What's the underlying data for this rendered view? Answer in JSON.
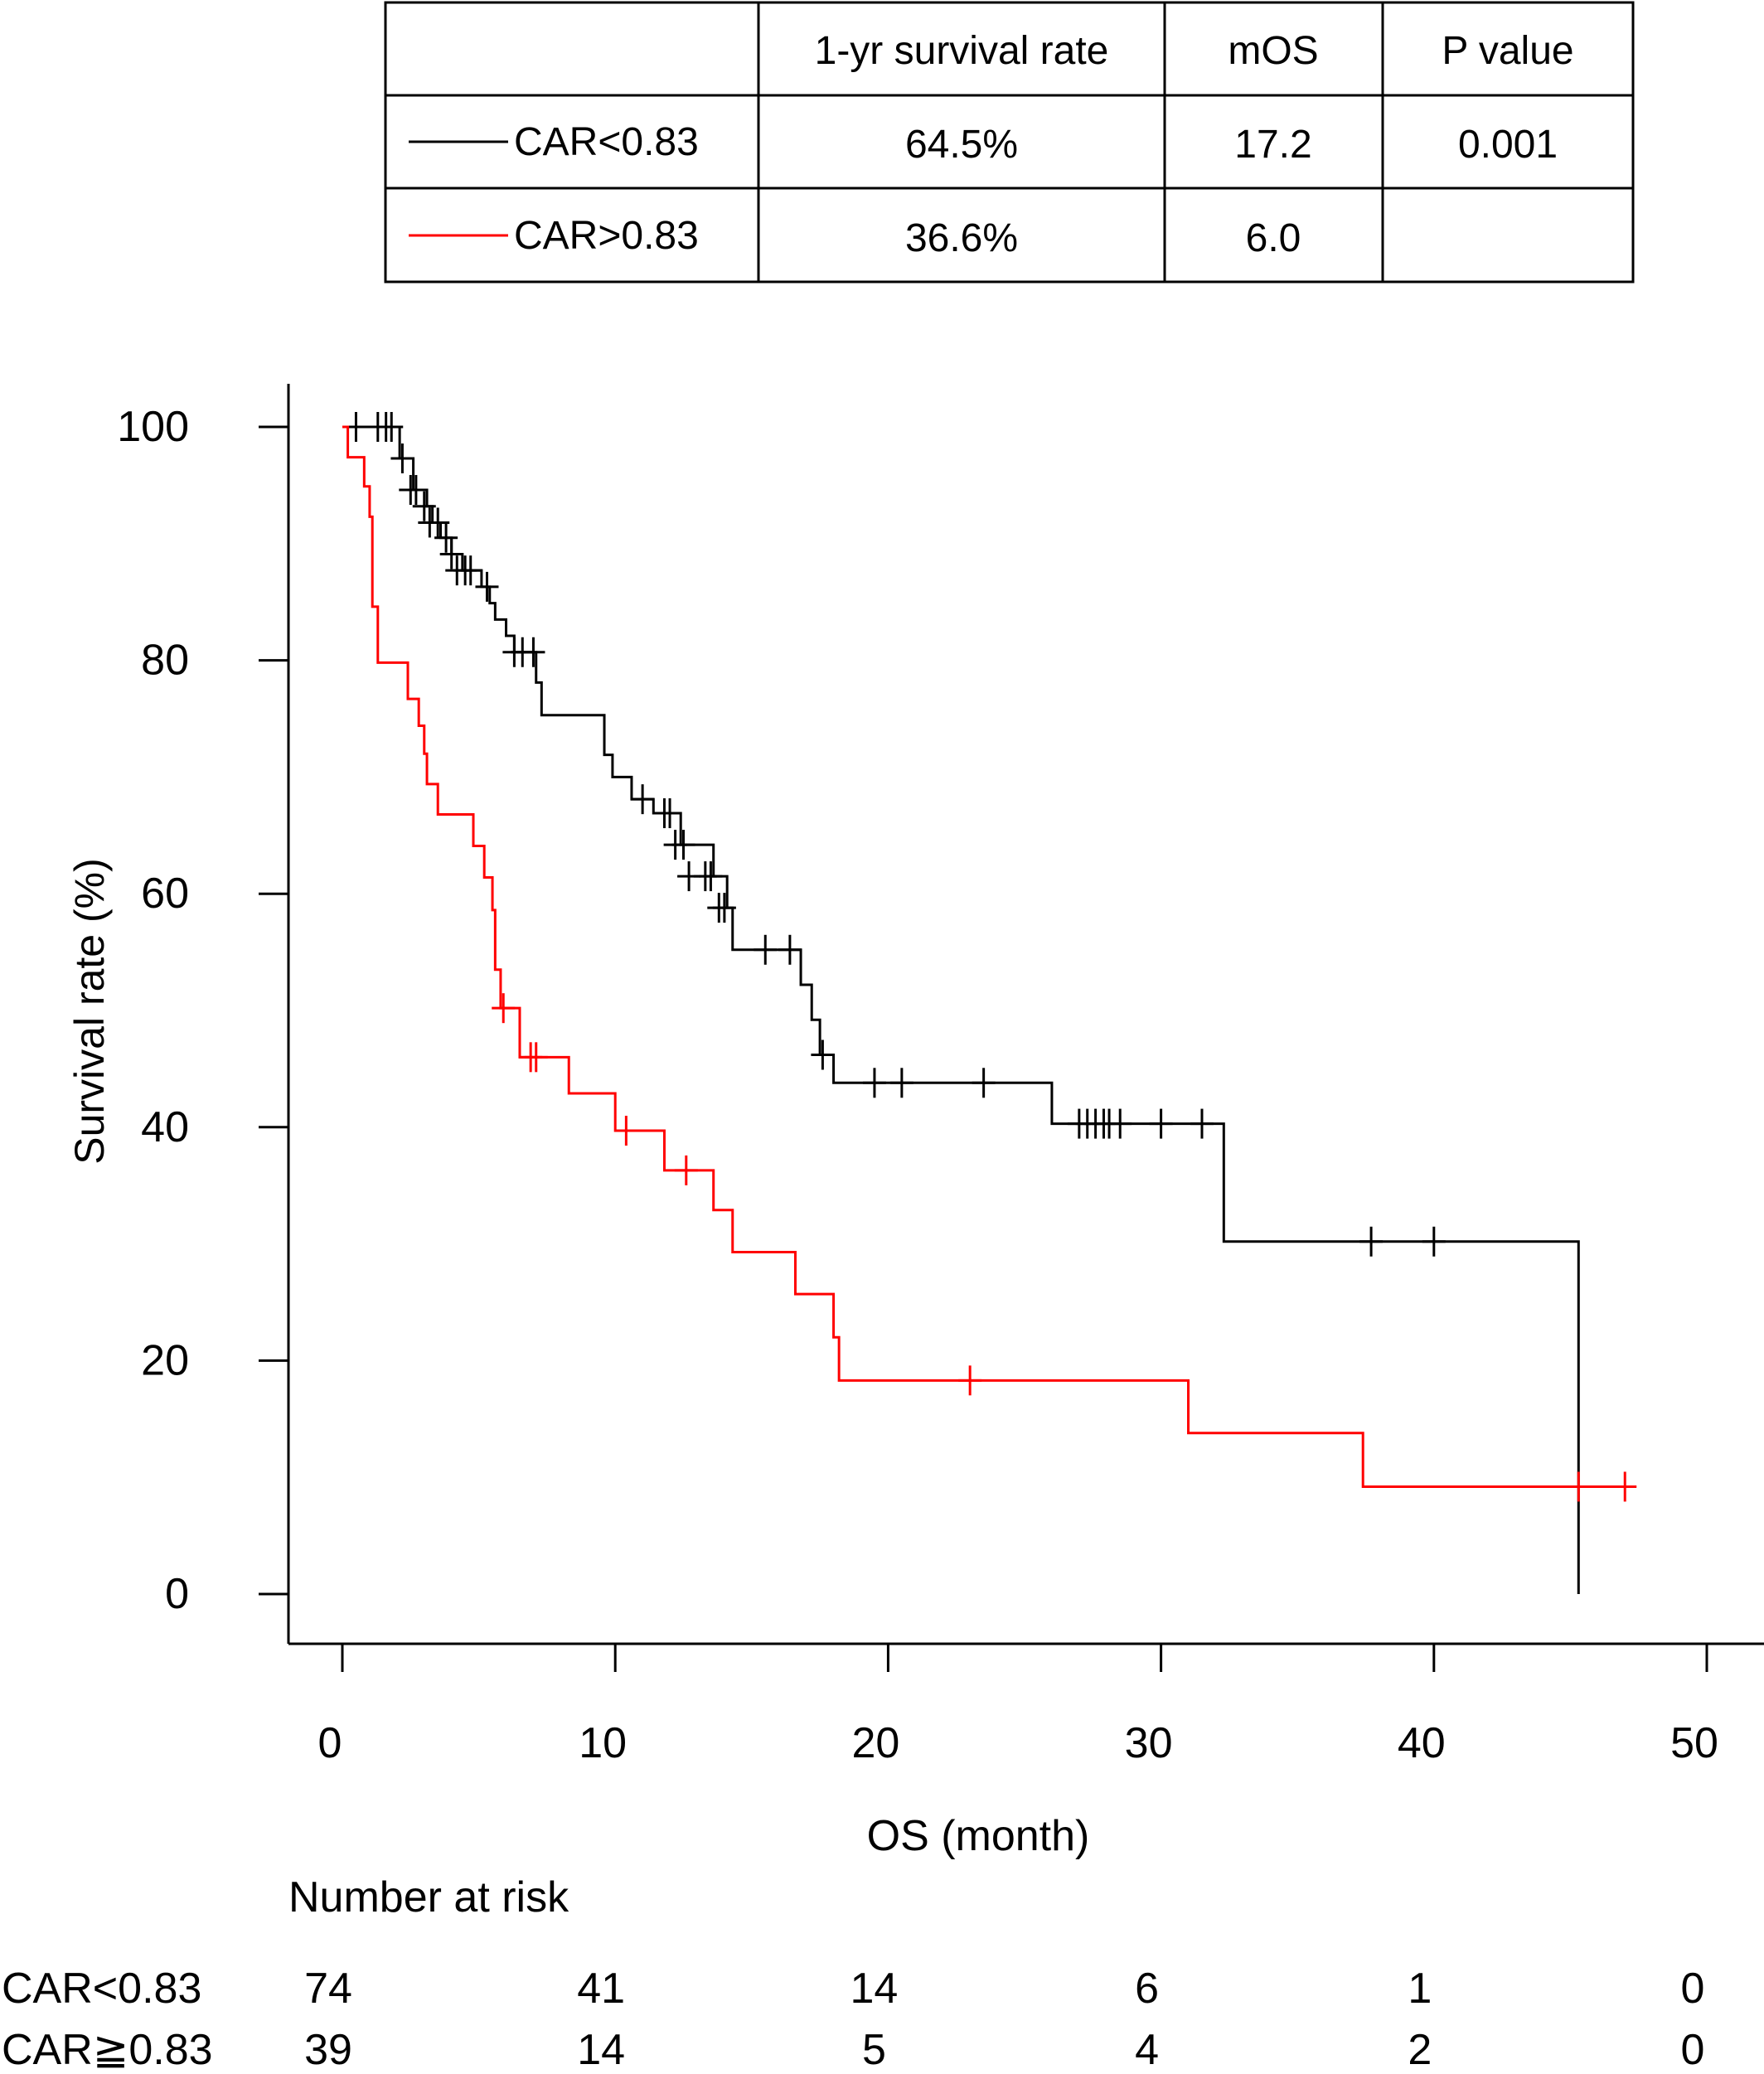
{
  "summary_table": {
    "headers": [
      "",
      "1-yr survival rate",
      "mOS",
      "P value"
    ],
    "rows": [
      {
        "label": "CAR<0.83",
        "color": "#000000",
        "one_year_survival": "64.5%",
        "mos": "17.2",
        "p_value": "0.001"
      },
      {
        "label": "CAR>0.83",
        "color": "#ff0000",
        "one_year_survival": "36.6%",
        "mos": "6.0",
        "p_value": ""
      }
    ]
  },
  "chart_data": {
    "type": "line",
    "step": true,
    "xlabel": "OS (month)",
    "ylabel": "Survival rate (%)",
    "xlim": [
      0,
      50
    ],
    "ylim": [
      0,
      100
    ],
    "xticks": [
      0,
      10,
      20,
      30,
      40,
      50
    ],
    "yticks": [
      0,
      20,
      40,
      60,
      80,
      100
    ],
    "grid": false,
    "series": [
      {
        "name": "CAR<0.83",
        "color": "#000000",
        "steps": [
          [
            0,
            100
          ],
          [
            2.1,
            97.3
          ],
          [
            2.6,
            94.6
          ],
          [
            3.1,
            93.2
          ],
          [
            3.3,
            91.8
          ],
          [
            3.6,
            90.5
          ],
          [
            4.0,
            89.1
          ],
          [
            4.4,
            87.7
          ],
          [
            5.1,
            86.3
          ],
          [
            5.4,
            84.9
          ],
          [
            5.6,
            83.5
          ],
          [
            6.0,
            82.1
          ],
          [
            6.3,
            80.7
          ],
          [
            7.1,
            78.1
          ],
          [
            7.3,
            75.3
          ],
          [
            9.6,
            71.9
          ],
          [
            9.9,
            70.0
          ],
          [
            10.6,
            68.1
          ],
          [
            11.4,
            66.9
          ],
          [
            12.4,
            64.2
          ],
          [
            13.6,
            61.5
          ],
          [
            14.1,
            58.8
          ],
          [
            14.3,
            55.2
          ],
          [
            16.8,
            52.2
          ],
          [
            17.2,
            49.2
          ],
          [
            17.5,
            46.2
          ],
          [
            18.0,
            43.8
          ],
          [
            26.0,
            40.3
          ],
          [
            32.3,
            30.2
          ],
          [
            45.3,
            0
          ]
        ],
        "end_x": 45.3,
        "censored": [
          [
            0.5,
            100
          ],
          [
            1.3,
            100
          ],
          [
            1.6,
            100
          ],
          [
            1.8,
            100
          ],
          [
            2.2,
            97.3
          ],
          [
            2.5,
            94.6
          ],
          [
            2.7,
            94.6
          ],
          [
            3.0,
            93.2
          ],
          [
            3.2,
            91.8
          ],
          [
            3.5,
            91.8
          ],
          [
            3.8,
            90.5
          ],
          [
            4.0,
            89.1
          ],
          [
            4.2,
            87.7
          ],
          [
            4.5,
            87.7
          ],
          [
            4.7,
            87.7
          ],
          [
            5.3,
            86.3
          ],
          [
            6.3,
            80.7
          ],
          [
            6.6,
            80.7
          ],
          [
            7.0,
            80.7
          ],
          [
            11.0,
            68.1
          ],
          [
            11.8,
            66.9
          ],
          [
            12.0,
            66.9
          ],
          [
            12.2,
            64.2
          ],
          [
            12.5,
            64.2
          ],
          [
            12.7,
            61.5
          ],
          [
            13.3,
            61.5
          ],
          [
            13.5,
            61.5
          ],
          [
            13.8,
            58.8
          ],
          [
            14.0,
            58.8
          ],
          [
            15.5,
            55.2
          ],
          [
            16.4,
            55.2
          ],
          [
            17.6,
            46.2
          ],
          [
            19.5,
            43.8
          ],
          [
            20.5,
            43.8
          ],
          [
            23.5,
            43.8
          ],
          [
            27.0,
            40.3
          ],
          [
            27.3,
            40.3
          ],
          [
            27.6,
            40.3
          ],
          [
            27.9,
            40.3
          ],
          [
            28.1,
            40.3
          ],
          [
            28.5,
            40.3
          ],
          [
            30.0,
            40.3
          ],
          [
            31.5,
            40.3
          ],
          [
            37.7,
            30.2
          ],
          [
            40.0,
            30.2
          ]
        ]
      },
      {
        "name": "CAR≧0.83",
        "color": "#ff0000",
        "steps": [
          [
            0,
            100
          ],
          [
            0.2,
            97.4
          ],
          [
            0.8,
            94.9
          ],
          [
            1.0,
            92.3
          ],
          [
            1.1,
            84.6
          ],
          [
            1.3,
            79.8
          ],
          [
            2.4,
            76.7
          ],
          [
            2.8,
            74.4
          ],
          [
            3.0,
            72.0
          ],
          [
            3.1,
            69.4
          ],
          [
            3.5,
            66.8
          ],
          [
            4.8,
            64.1
          ],
          [
            5.2,
            61.4
          ],
          [
            5.5,
            58.6
          ],
          [
            5.6,
            53.5
          ],
          [
            5.8,
            50.2
          ],
          [
            6.5,
            46.0
          ],
          [
            8.3,
            42.9
          ],
          [
            10.0,
            39.7
          ],
          [
            11.8,
            36.3
          ],
          [
            13.6,
            32.9
          ],
          [
            14.3,
            29.3
          ],
          [
            16.6,
            25.7
          ],
          [
            18.0,
            22.0
          ],
          [
            18.2,
            18.3
          ],
          [
            31.0,
            13.8
          ],
          [
            37.4,
            9.2
          ]
        ],
        "end_x": 47.2,
        "censored": [
          [
            5.9,
            50.2
          ],
          [
            6.9,
            46.0
          ],
          [
            7.1,
            46.0
          ],
          [
            10.4,
            39.7
          ],
          [
            12.6,
            36.3
          ],
          [
            23.0,
            18.3
          ],
          [
            45.3,
            9.2
          ],
          [
            47.0,
            9.2
          ]
        ]
      }
    ],
    "number_at_risk": {
      "title": "Number at risk",
      "times": [
        0,
        10,
        20,
        30,
        40,
        50
      ],
      "rows": [
        {
          "label": "CAR<0.83",
          "values": [
            "74",
            "41",
            "14",
            "6",
            "1",
            "0"
          ]
        },
        {
          "label": "CAR≧0.83",
          "values": [
            "39",
            "14",
            "5",
            "4",
            "2",
            "0"
          ]
        }
      ]
    }
  }
}
